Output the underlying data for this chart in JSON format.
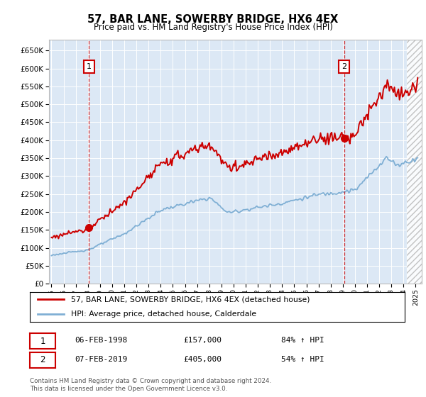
{
  "title": "57, BAR LANE, SOWERBY BRIDGE, HX6 4EX",
  "subtitle": "Price paid vs. HM Land Registry's House Price Index (HPI)",
  "legend_line1": "57, BAR LANE, SOWERBY BRIDGE, HX6 4EX (detached house)",
  "legend_line2": "HPI: Average price, detached house, Calderdale",
  "annotation1_date": "06-FEB-1998",
  "annotation1_price": "£157,000",
  "annotation1_hpi": "84% ↑ HPI",
  "annotation2_date": "07-FEB-2019",
  "annotation2_price": "£405,000",
  "annotation2_hpi": "54% ↑ HPI",
  "footer": "Contains HM Land Registry data © Crown copyright and database right 2024.\nThis data is licensed under the Open Government Licence v3.0.",
  "red_line_color": "#cc0000",
  "blue_line_color": "#7fafd4",
  "bg_color": "#dce8f5",
  "sale1_year": 1998.1,
  "sale1_value": 157000,
  "sale2_year": 2019.1,
  "sale2_value": 405000,
  "ylim_min": 0,
  "ylim_max": 680000,
  "xlim_min": 1994.8,
  "xlim_max": 2025.5
}
